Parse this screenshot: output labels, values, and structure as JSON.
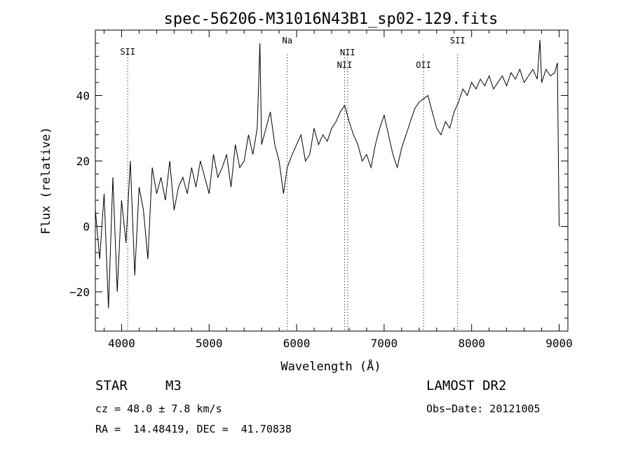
{
  "chart_data": {
    "type": "line",
    "title": "spec-56206-M31016N43B1_sp02-129.fits",
    "xlabel": "Wavelength (Å)",
    "ylabel": "Flux (relative)",
    "xlim": [
      3700,
      9100
    ],
    "ylim": [
      -32,
      60
    ],
    "x_ticks": [
      4000,
      5000,
      6000,
      7000,
      8000,
      9000
    ],
    "x_tick_labels": [
      "4000",
      "5000",
      "6000",
      "7000",
      "8000",
      "9000"
    ],
    "y_ticks": [
      -20,
      0,
      20,
      40
    ],
    "y_tick_labels": [
      "−20",
      "0",
      "20",
      "40"
    ],
    "line_color": "#000000",
    "lines": [
      {
        "label": "SII",
        "wavelength": 4070
      },
      {
        "label": "Na",
        "wavelength": 5893
      },
      {
        "label": "NII",
        "wavelength": 6548
      },
      {
        "label": "NII",
        "wavelength": 6583
      },
      {
        "label": "OII",
        "wavelength": 7450
      },
      {
        "label": "SII",
        "wavelength": 7840
      }
    ],
    "series": [
      {
        "x": [
          3700,
          3750,
          3800,
          3850,
          3900,
          3950,
          4000,
          4050,
          4100,
          4150,
          4200,
          4250,
          4300,
          4350,
          4400,
          4450,
          4500,
          4550,
          4600,
          4650,
          4700,
          4750,
          4800,
          4850,
          4900,
          4950,
          5000,
          5050,
          5100,
          5150,
          5200,
          5250,
          5300,
          5350,
          5400,
          5450,
          5500,
          5550,
          5580,
          5600,
          5650,
          5700,
          5750,
          5800,
          5850,
          5893,
          5950,
          6000,
          6050,
          6100,
          6150,
          6200,
          6250,
          6300,
          6350,
          6400,
          6450,
          6500,
          6550,
          6600,
          6650,
          6700,
          6750,
          6800,
          6850,
          6900,
          6950,
          7000,
          7050,
          7100,
          7150,
          7200,
          7250,
          7300,
          7350,
          7400,
          7450,
          7500,
          7550,
          7600,
          7650,
          7700,
          7750,
          7800,
          7850,
          7900,
          7950,
          8000,
          8050,
          8100,
          8150,
          8200,
          8250,
          8300,
          8350,
          8400,
          8450,
          8500,
          8550,
          8600,
          8650,
          8700,
          8750,
          8780,
          8800,
          8850,
          8900,
          8950,
          8980,
          9000
        ],
        "y": [
          5,
          -10,
          10,
          -25,
          15,
          -20,
          8,
          -5,
          20,
          -15,
          12,
          5,
          -10,
          18,
          10,
          15,
          8,
          20,
          5,
          12,
          15,
          10,
          18,
          12,
          20,
          15,
          10,
          22,
          15,
          18,
          22,
          12,
          25,
          18,
          20,
          28,
          22,
          30,
          56,
          25,
          30,
          35,
          25,
          20,
          10,
          18,
          22,
          25,
          28,
          20,
          22,
          30,
          25,
          28,
          26,
          30,
          32,
          35,
          37,
          32,
          28,
          25,
          20,
          22,
          18,
          25,
          30,
          34,
          28,
          22,
          18,
          24,
          28,
          32,
          36,
          38,
          39,
          40,
          35,
          30,
          28,
          32,
          30,
          35,
          38,
          42,
          40,
          44,
          42,
          45,
          43,
          46,
          42,
          44,
          46,
          43,
          47,
          45,
          48,
          44,
          46,
          48,
          45,
          57,
          44,
          48,
          46,
          47,
          50,
          0
        ]
      }
    ]
  },
  "info": {
    "object_class": "STAR",
    "subclass": "M3",
    "survey": "LAMOST DR2",
    "cz": "cz = 48.0 ± 7.8 km/s",
    "obs_date": "Obs−Date: 20121005",
    "radec": "RA =  14.48419, DEC =  41.70838"
  }
}
